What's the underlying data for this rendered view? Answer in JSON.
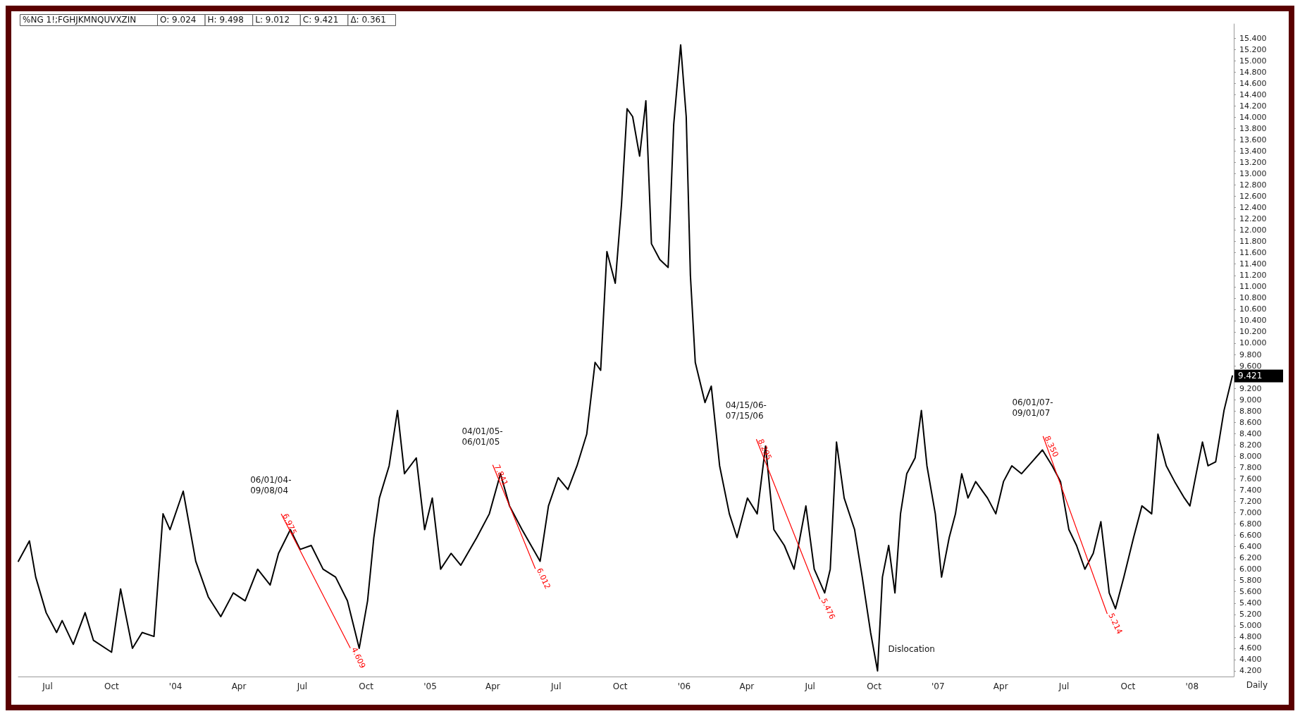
{
  "chart_data": {
    "type": "line",
    "title": "%NG 1!;FGHJKMNQUVXZIN",
    "xlabel": "Daily",
    "annotations": [
      "O: 9.024",
      "H: 9.498",
      "L: 9.012",
      "C: 9.421",
      "Δ: 0.361",
      {
        "text": "06/01/04-\n09/08/04",
        "x": "2004-06-01",
        "y": 6.975
      },
      {
        "text": "04/01/05-\n06/01/05",
        "x": "2005-04-01",
        "y": 7.841
      },
      {
        "text": "04/15/06-\n07/15/06",
        "x": "2006-04-15",
        "y": 8.295
      },
      {
        "text": "06/01/07-\n09/01/07",
        "x": "2007-06-01",
        "y": 8.35
      },
      {
        "text": "Dislocation",
        "x": "2006-10-06",
        "y": 4.2
      },
      {
        "text": "9.421",
        "x": "2008-03-01",
        "y": 9.421
      }
    ],
    "xlim": [
      "2003-05-20",
      "2008-03-01"
    ],
    "xticks": [
      {
        "value": "2003-07-01",
        "label": "Jul"
      },
      {
        "value": "2003-10-01",
        "label": "Oct"
      },
      {
        "value": "2004-01-01",
        "label": "'04"
      },
      {
        "value": "2004-04-01",
        "label": "Apr"
      },
      {
        "value": "2004-07-01",
        "label": "Jul"
      },
      {
        "value": "2004-10-01",
        "label": "Oct"
      },
      {
        "value": "2005-01-01",
        "label": "'05"
      },
      {
        "value": "2005-04-01",
        "label": "Apr"
      },
      {
        "value": "2005-07-01",
        "label": "Jul"
      },
      {
        "value": "2005-10-01",
        "label": "Oct"
      },
      {
        "value": "2006-01-01",
        "label": "'06"
      },
      {
        "value": "2006-04-01",
        "label": "Apr"
      },
      {
        "value": "2006-07-01",
        "label": "Jul"
      },
      {
        "value": "2006-10-01",
        "label": "Oct"
      },
      {
        "value": "2007-01-01",
        "label": "'07"
      },
      {
        "value": "2007-04-01",
        "label": "Apr"
      },
      {
        "value": "2007-07-01",
        "label": "Jul"
      },
      {
        "value": "2007-10-01",
        "label": "Oct"
      },
      {
        "value": "2008-01-01",
        "label": "'08"
      }
    ],
    "ylim": [
      4.1,
      15.65
    ],
    "yticks": [
      {
        "value": 4.2,
        "label": "4.200"
      },
      {
        "value": 4.4,
        "label": "4.400"
      },
      {
        "value": 4.6,
        "label": "4.600"
      },
      {
        "value": 4.8,
        "label": "4.800"
      },
      {
        "value": 5.0,
        "label": "5.000"
      },
      {
        "value": 5.2,
        "label": "5.200"
      },
      {
        "value": 5.4,
        "label": "5.400"
      },
      {
        "value": 5.6,
        "label": "5.600"
      },
      {
        "value": 5.8,
        "label": "5.800"
      },
      {
        "value": 6.0,
        "label": "6.000"
      },
      {
        "value": 6.2,
        "label": "6.200"
      },
      {
        "value": 6.4,
        "label": "6.400"
      },
      {
        "value": 6.6,
        "label": "6.600"
      },
      {
        "value": 6.8,
        "label": "6.800"
      },
      {
        "value": 7.0,
        "label": "7.000"
      },
      {
        "value": 7.2,
        "label": "7.200"
      },
      {
        "value": 7.4,
        "label": "7.400"
      },
      {
        "value": 7.6,
        "label": "7.600"
      },
      {
        "value": 7.8,
        "label": "7.800"
      },
      {
        "value": 8.0,
        "label": "8.000"
      },
      {
        "value": 8.2,
        "label": "8.200"
      },
      {
        "value": 8.4,
        "label": "8.400"
      },
      {
        "value": 8.6,
        "label": "8.600"
      },
      {
        "value": 8.8,
        "label": "8.800"
      },
      {
        "value": 9.0,
        "label": "9.000"
      },
      {
        "value": 9.2,
        "label": "9.200"
      },
      {
        "value": 9.6,
        "label": "9.600"
      },
      {
        "value": 9.8,
        "label": "9.800"
      },
      {
        "value": 10.0,
        "label": "10.000"
      },
      {
        "value": 10.2,
        "label": "10.200"
      },
      {
        "value": 10.4,
        "label": "10.400"
      },
      {
        "value": 10.6,
        "label": "10.600"
      },
      {
        "value": 10.8,
        "label": "10.800"
      },
      {
        "value": 11.0,
        "label": "11.000"
      },
      {
        "value": 11.2,
        "label": "11.200"
      },
      {
        "value": 11.4,
        "label": "11.400"
      },
      {
        "value": 11.6,
        "label": "11.600"
      },
      {
        "value": 11.8,
        "label": "11.800"
      },
      {
        "value": 12.0,
        "label": "12.000"
      },
      {
        "value": 12.2,
        "label": "12.200"
      },
      {
        "value": 12.4,
        "label": "12.400"
      },
      {
        "value": 12.6,
        "label": "12.600"
      },
      {
        "value": 12.8,
        "label": "12.800"
      },
      {
        "value": 13.0,
        "label": "13.000"
      },
      {
        "value": 13.2,
        "label": "13.200"
      },
      {
        "value": 13.4,
        "label": "13.400"
      },
      {
        "value": 13.6,
        "label": "13.600"
      },
      {
        "value": 13.8,
        "label": "13.800"
      },
      {
        "value": 14.0,
        "label": "14.000"
      },
      {
        "value": 14.2,
        "label": "14.200"
      },
      {
        "value": 14.4,
        "label": "14.400"
      },
      {
        "value": 14.6,
        "label": "14.600"
      },
      {
        "value": 14.8,
        "label": "14.800"
      },
      {
        "value": 15.0,
        "label": "15.000"
      },
      {
        "value": 15.2,
        "label": "15.200"
      },
      {
        "value": 15.4,
        "label": "15.400"
      }
    ],
    "grid": false,
    "marker": "none",
    "line_style": "solid",
    "series": [
      {
        "color": "#000000",
        "x": [
          "2003-05-20",
          "2003-06-05",
          "2003-06-14",
          "2003-06-29",
          "2003-07-14",
          "2003-07-22",
          "2003-08-07",
          "2003-08-24",
          "2003-09-05",
          "2003-10-01",
          "2003-10-14",
          "2003-10-31",
          "2003-11-14",
          "2003-12-01",
          "2003-12-14",
          "2003-12-24",
          "2004-01-12",
          "2004-01-30",
          "2004-02-17",
          "2004-03-06",
          "2004-03-24",
          "2004-04-10",
          "2004-04-28",
          "2004-05-16",
          "2004-05-28",
          "2004-06-14",
          "2004-06-28",
          "2004-07-14",
          "2004-07-31",
          "2004-08-18",
          "2004-09-04",
          "2004-09-21",
          "2004-10-03",
          "2004-10-12",
          "2004-10-20",
          "2004-11-03",
          "2004-11-15",
          "2004-11-25",
          "2004-12-12",
          "2004-12-24",
          "2005-01-04",
          "2005-01-16",
          "2005-01-31",
          "2005-02-14",
          "2005-03-09",
          "2005-03-27",
          "2005-04-12",
          "2005-04-25",
          "2005-05-13",
          "2005-06-08",
          "2005-06-20",
          "2005-07-04",
          "2005-07-18",
          "2005-07-31",
          "2005-08-14",
          "2005-08-26",
          "2005-09-03",
          "2005-09-12",
          "2005-09-24",
          "2005-10-03",
          "2005-10-11",
          "2005-10-19",
          "2005-10-29",
          "2005-11-07",
          "2005-11-15",
          "2005-11-27",
          "2005-12-09",
          "2005-12-17",
          "2005-12-27",
          "2006-01-04",
          "2006-01-10",
          "2006-01-17",
          "2006-01-31",
          "2006-02-09",
          "2006-02-21",
          "2006-03-07",
          "2006-03-18",
          "2006-04-02",
          "2006-04-16",
          "2006-04-28",
          "2006-05-10",
          "2006-05-25",
          "2006-06-08",
          "2006-06-25",
          "2006-07-07",
          "2006-07-22",
          "2006-07-30",
          "2006-08-08",
          "2006-08-19",
          "2006-09-03",
          "2006-09-14",
          "2006-09-26",
          "2006-10-06",
          "2006-10-13",
          "2006-10-22",
          "2006-10-31",
          "2006-11-08",
          "2006-11-17",
          "2006-11-29",
          "2006-12-08",
          "2006-12-16",
          "2006-12-28",
          "2007-01-06",
          "2007-01-17",
          "2007-01-26",
          "2007-02-04",
          "2007-02-13",
          "2007-02-24",
          "2007-03-13",
          "2007-03-25",
          "2007-04-05",
          "2007-04-17",
          "2007-05-01",
          "2007-05-16",
          "2007-05-31",
          "2007-06-14",
          "2007-06-26",
          "2007-07-08",
          "2007-07-19",
          "2007-07-31",
          "2007-08-12",
          "2007-08-23",
          "2007-09-04",
          "2007-09-13",
          "2007-09-25",
          "2007-10-09",
          "2007-10-21",
          "2007-11-04",
          "2007-11-13",
          "2007-11-25",
          "2007-12-07",
          "2007-12-21",
          "2007-12-29",
          "2008-01-07",
          "2008-01-16",
          "2008-01-24",
          "2008-02-04",
          "2008-02-16",
          "2008-02-28"
        ],
        "values": [
          6.14,
          6.5,
          5.86,
          5.23,
          4.88,
          5.09,
          4.67,
          5.23,
          4.74,
          4.53,
          5.65,
          4.6,
          4.88,
          4.81,
          6.98,
          6.7,
          7.38,
          6.14,
          5.51,
          5.16,
          5.58,
          5.44,
          6.0,
          5.72,
          6.28,
          6.7,
          6.35,
          6.42,
          6.0,
          5.86,
          5.44,
          4.6,
          5.44,
          6.56,
          7.26,
          7.83,
          8.81,
          7.69,
          7.97,
          6.7,
          7.26,
          6.0,
          6.28,
          6.07,
          6.56,
          6.98,
          7.69,
          7.12,
          6.7,
          6.14,
          7.12,
          7.62,
          7.41,
          7.83,
          8.39,
          9.66,
          9.52,
          11.62,
          11.06,
          12.46,
          14.15,
          14.01,
          13.31,
          14.29,
          11.76,
          11.48,
          11.34,
          13.87,
          15.28,
          14.01,
          11.2,
          9.66,
          8.95,
          9.24,
          7.83,
          6.98,
          6.56,
          7.26,
          6.98,
          8.18,
          6.7,
          6.42,
          6.0,
          7.12,
          6.0,
          5.58,
          6.0,
          8.25,
          7.26,
          6.7,
          5.86,
          4.88,
          4.2,
          5.86,
          6.42,
          5.58,
          6.98,
          7.69,
          7.97,
          8.81,
          7.83,
          6.98,
          5.86,
          6.56,
          6.98,
          7.69,
          7.26,
          7.55,
          7.26,
          6.98,
          7.55,
          7.83,
          7.69,
          7.9,
          8.11,
          7.83,
          7.55,
          6.7,
          6.42,
          6.0,
          6.28,
          6.84,
          5.58,
          5.3,
          5.86,
          6.56,
          7.12,
          6.98,
          8.39,
          7.83,
          7.55,
          7.26,
          7.12,
          7.69,
          8.25,
          7.83,
          7.9,
          8.81,
          9.421
        ]
      },
      {
        "color": "#ff0000",
        "x": [
          "2004-06-01",
          "2004-09-08"
        ],
        "values": [
          6.975,
          4.609
        ],
        "value_labels": [
          "6.975",
          "4.609"
        ]
      },
      {
        "color": "#ff0000",
        "x": [
          "2005-04-01",
          "2005-06-01"
        ],
        "values": [
          7.841,
          6.012
        ],
        "value_labels": [
          "7.841",
          "6.012"
        ]
      },
      {
        "color": "#ff0000",
        "x": [
          "2006-04-15",
          "2006-07-15"
        ],
        "values": [
          8.295,
          5.476
        ],
        "value_labels": [
          "8.295",
          "5.476"
        ]
      },
      {
        "color": "#ff0000",
        "x": [
          "2007-06-01",
          "2007-09-01"
        ],
        "values": [
          8.35,
          5.214
        ],
        "value_labels": [
          "8.350",
          "5.214"
        ]
      }
    ]
  }
}
